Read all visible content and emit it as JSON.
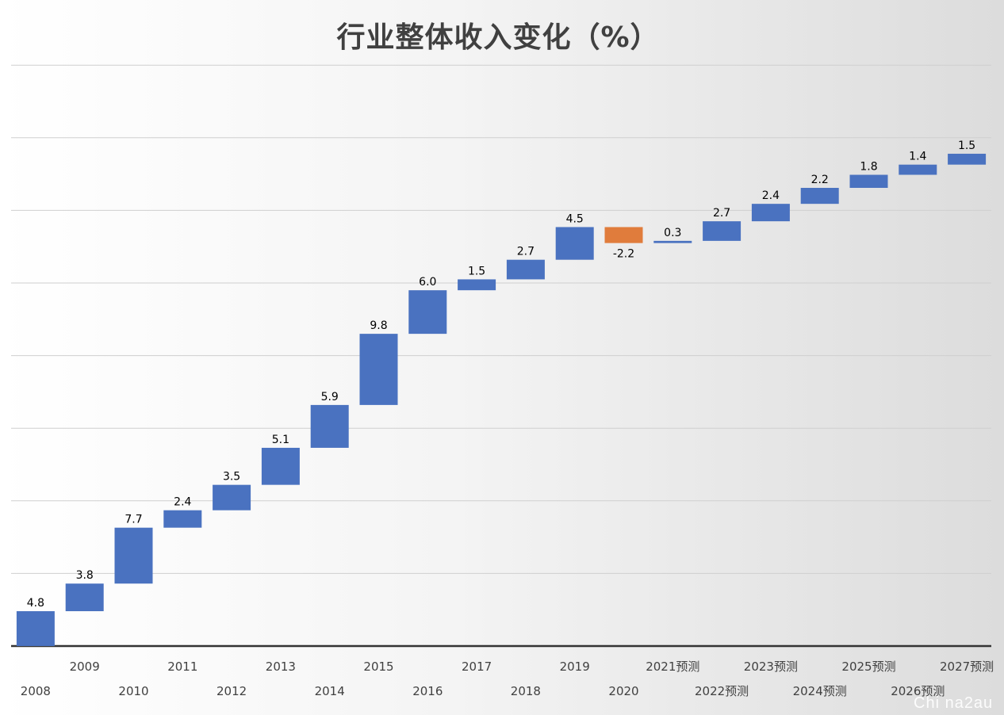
{
  "chart_data": {
    "type": "bar",
    "subtype": "waterfall",
    "title": "行业整体收入变化（%）",
    "categories": [
      "2008",
      "2009",
      "2010",
      "2011",
      "2012",
      "2013",
      "2014",
      "2015",
      "2016",
      "2017",
      "2018",
      "2019",
      "2020",
      "2021预测",
      "2022预测",
      "2023预测",
      "2024预测",
      "2025预测",
      "2026预测",
      "2027预测"
    ],
    "values": [
      4.8,
      3.8,
      7.7,
      2.4,
      3.5,
      5.1,
      5.9,
      9.8,
      6.0,
      1.5,
      2.7,
      4.5,
      -2.2,
      0.3,
      2.7,
      2.4,
      2.2,
      1.8,
      1.4,
      1.5
    ],
    "value_labels": [
      "4.8",
      "3.8",
      "7.7",
      "2.4",
      "3.5",
      "5.1",
      "5.9",
      "9.8",
      "6.0",
      "1.5",
      "2.7",
      "4.5",
      "-2.2",
      "0.3",
      "2.7",
      "2.4",
      "2.2",
      "1.8",
      "1.4",
      "1.5"
    ],
    "ylim": [
      0,
      80
    ],
    "y_gridlines": [
      0,
      10,
      20,
      30,
      40,
      50,
      60,
      70,
      80
    ],
    "grid": true,
    "legend": "none",
    "colors": {
      "increase": "#4a72c0",
      "decrease": "#e07c3c",
      "axis": "#333333",
      "grid": "#cfcfcf"
    }
  },
  "watermark": "Chi na2au"
}
